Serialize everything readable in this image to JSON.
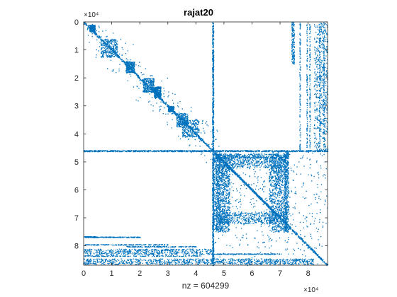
{
  "chart_data": {
    "type": "spy",
    "title": "rajat20",
    "xlabel": "nz = 604299",
    "ylabel": "",
    "n": 86916,
    "nnz": 604299,
    "xlim": [
      0,
      86916
    ],
    "ylim": [
      0,
      86916
    ],
    "y_reversed": true,
    "grid": false,
    "exponent_label": "×10⁴",
    "x_exponent": "×10⁴",
    "y_exponent": "×10⁴",
    "x_ticks": [
      0,
      10000,
      20000,
      30000,
      40000,
      50000,
      60000,
      70000,
      80000
    ],
    "x_tick_labels": [
      "0",
      "1",
      "2",
      "3",
      "4",
      "5",
      "6",
      "7",
      "8"
    ],
    "y_ticks": [
      0,
      10000,
      20000,
      30000,
      40000,
      50000,
      60000,
      70000,
      80000
    ],
    "y_tick_labels": [
      "0",
      "1",
      "2",
      "3",
      "4",
      "5",
      "6",
      "7",
      "8"
    ],
    "marker_color": "#0072BD",
    "structure": {
      "diagonal": true,
      "blocks": [
        {
          "x": [
            2000,
            4000
          ],
          "y": [
            1000,
            3500
          ]
        },
        {
          "x": [
            6000,
            12000
          ],
          "y": [
            6000,
            12500
          ]
        },
        {
          "x": [
            15000,
            18000
          ],
          "y": [
            14000,
            18000
          ]
        },
        {
          "x": [
            21000,
            25000
          ],
          "y": [
            20000,
            25000
          ]
        },
        {
          "x": [
            25000,
            27500
          ],
          "y": [
            23000,
            27000
          ]
        },
        {
          "x": [
            30000,
            32000
          ],
          "y": [
            30000,
            32000
          ]
        },
        {
          "x": [
            33000,
            37000
          ],
          "y": [
            32500,
            37500
          ]
        },
        {
          "x": [
            35000,
            41000
          ],
          "y": [
            35000,
            41000
          ]
        }
      ],
      "dense_row_bands": [
        {
          "y": 46000,
          "x_range": [
            0,
            86916
          ]
        },
        {
          "y": [
            47000,
            48500
          ],
          "x_range": [
            46000,
            73000
          ]
        },
        {
          "y": [
            81000,
            83000
          ],
          "x_range": [
            0,
            46000
          ]
        },
        {
          "y": [
            84500,
            86500
          ],
          "x_range": [
            0,
            82000
          ]
        },
        {
          "y": [
            76500,
            77000
          ],
          "x_range": [
            0,
            4000
          ]
        }
      ],
      "dense_col_bands": [
        {
          "x": 46000,
          "y_range": [
            0,
            86916
          ]
        },
        {
          "x": [
            46000,
            48500
          ],
          "y_range": [
            46000,
            75000
          ]
        },
        {
          "x": [
            71500,
            73000
          ],
          "y_range": [
            46000,
            75000
          ]
        },
        {
          "x": [
            82000,
            86916
          ],
          "y_range": [
            0,
            46000
          ]
        },
        {
          "x": [
            74000,
            75000
          ],
          "y_range": [
            0,
            15000
          ]
        }
      ],
      "sub_diagonal": {
        "x": [
          50000,
          68000
        ],
        "y": [
          50000,
          68000
        ]
      }
    }
  }
}
